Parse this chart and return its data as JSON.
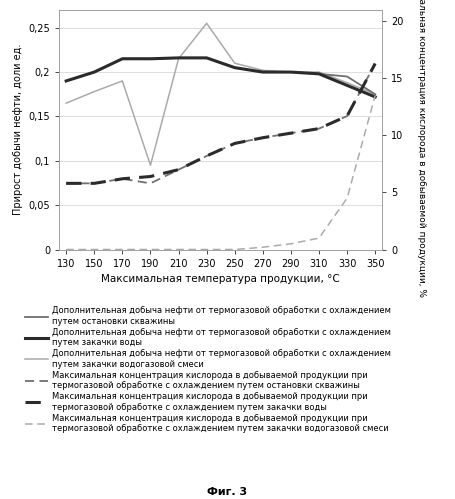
{
  "x": [
    130,
    150,
    170,
    190,
    210,
    230,
    250,
    270,
    290,
    310,
    330,
    350
  ],
  "line1_y": [
    0.19,
    0.2,
    0.215,
    0.215,
    0.216,
    0.216,
    0.205,
    0.2,
    0.2,
    0.198,
    0.195,
    0.175
  ],
  "line2_y": [
    0.19,
    0.2,
    0.215,
    0.215,
    0.216,
    0.216,
    0.205,
    0.2,
    0.2,
    0.198,
    0.185,
    0.172
  ],
  "line3_y": [
    0.165,
    0.178,
    0.19,
    0.095,
    0.215,
    0.255,
    0.21,
    0.202,
    0.2,
    0.2,
    0.188,
    0.175
  ],
  "dash1_vals": [
    5.8,
    5.8,
    6.2,
    5.8,
    7.0,
    8.2,
    9.3,
    9.8,
    10.2,
    10.6,
    11.7,
    16.3
  ],
  "dash2_vals": [
    5.8,
    5.8,
    6.2,
    6.4,
    7.0,
    8.2,
    9.3,
    9.8,
    10.2,
    10.6,
    11.7,
    16.3
  ],
  "dash3_vals": [
    0.0,
    0.0,
    0.0,
    0.0,
    0.0,
    0.0,
    0.0,
    0.2,
    0.5,
    1.0,
    4.5,
    13.5
  ],
  "xlabel": "Максимальная температура продукции, °С",
  "ylabel_left": "Прирост добычи нефти, доли ед.",
  "ylabel_right": "Максимальная концентрация кислорода в добываемой продукции, %",
  "fig_label": "Фиг. 3",
  "legend1": "Дополнительная добыча нефти от термогазовой обработки с охлаждением\nпутем остановки скважины",
  "legend2": "Дополнительная добыча нефти от термогазовой обработки с охлаждением\nпутем закачки воды",
  "legend3": "Дополнительная добыча нефти от термогазовой обработки с охлаждением\nпутем закачки водогазовой смеси",
  "legend4": "Максимальная концентрация кислорода в добываемой продукции при\nтермогазовой обработке с охлаждением путем остановки скважины",
  "legend5": "Максимальная концентрация кислорода в добываемой продукции при\nтермогазовой обработке с охлаждением путем закачки воды",
  "legend6": "Максимальная концентрация кислорода в добываемой продукции при\nтермогазовой обработке с охлаждением путем закачки водогазовой смеси",
  "ylim_left": [
    0,
    0.27
  ],
  "ylim_right": [
    0,
    21
  ],
  "yticks_left": [
    0,
    0.05,
    0.1,
    0.15,
    0.2,
    0.25
  ],
  "yticks_right": [
    0,
    5,
    10,
    15,
    20
  ],
  "xticks": [
    130,
    150,
    170,
    190,
    210,
    230,
    250,
    270,
    290,
    310,
    330,
    350
  ],
  "color_dark": "#2b2b2b",
  "color_medium": "#707070",
  "color_light": "#aaaaaa",
  "bg_color": "#ffffff"
}
